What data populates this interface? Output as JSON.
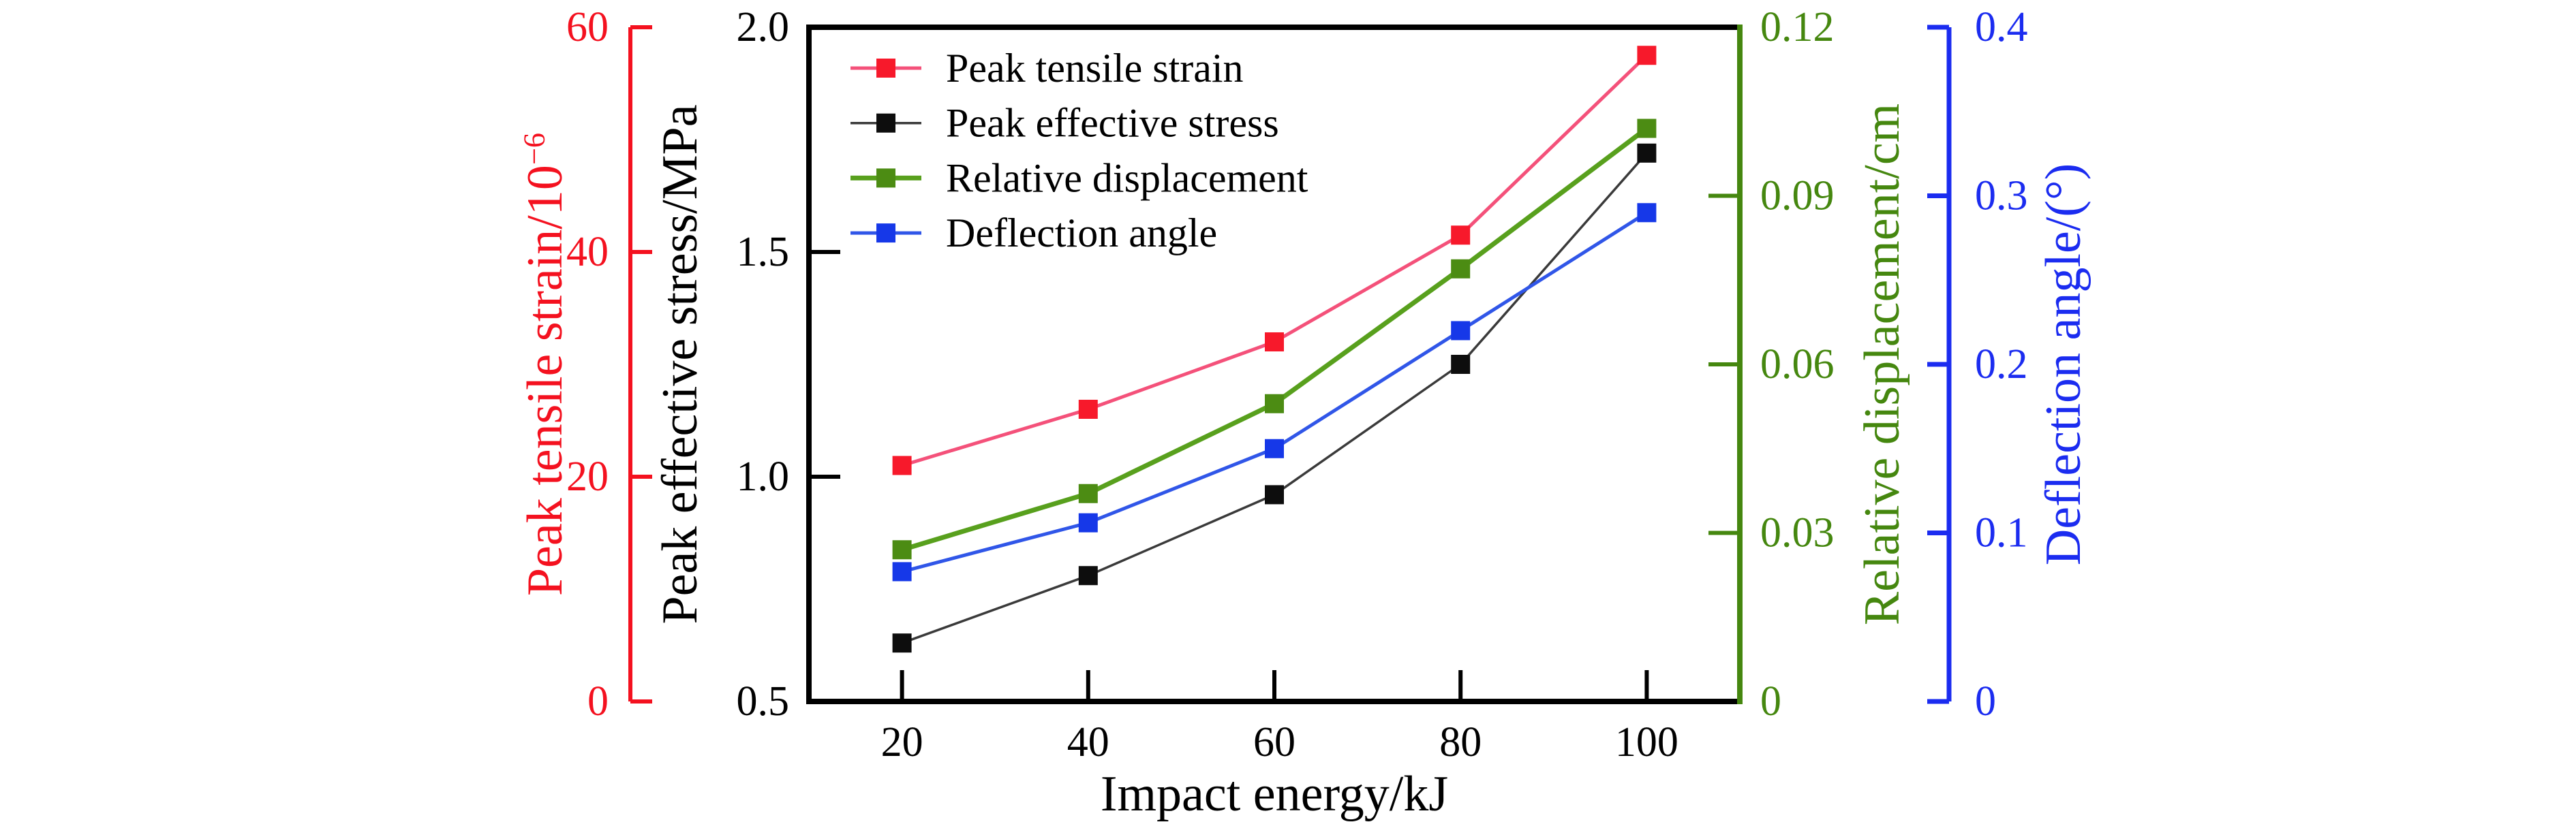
{
  "figure": {
    "background": "#ffffff"
  },
  "chart_data": {
    "type": "line",
    "title": "",
    "xlabel": "Impact energy/kJ",
    "xlim": [
      10,
      110
    ],
    "x": [
      20,
      40,
      60,
      80,
      100
    ],
    "x_tick_labels": [
      "20",
      "40",
      "60",
      "80",
      "100"
    ],
    "grid": false,
    "legend_position": "top-left-inside",
    "marker": "square",
    "axes": [
      {
        "id": "strain",
        "side": "left-outer",
        "title": "Peak tensile strain/10⁻⁶",
        "title_base": "Peak tensile strain/10",
        "title_exp": "−6",
        "color": "#f4111f",
        "lim": [
          0,
          60
        ],
        "tick_labels": [
          "0",
          "20",
          "40",
          "60"
        ]
      },
      {
        "id": "stress",
        "side": "left-inner",
        "title": "Peak effective stress/MPa",
        "color": "#000000",
        "lim": [
          0.5,
          2.0
        ],
        "tick_labels": [
          "0.5",
          "1.0",
          "1.5",
          "2.0"
        ]
      },
      {
        "id": "displacement",
        "side": "right-inner",
        "title": "Relative displacement/cm",
        "color": "#45870f",
        "lim": [
          0,
          0.12
        ],
        "tick_labels": [
          "0",
          "0.03",
          "0.06",
          "0.09",
          "0.12"
        ]
      },
      {
        "id": "angle",
        "side": "right-outer",
        "title": "Deflection angle/(°)",
        "color": "#1b2cf0",
        "lim": [
          0,
          0.4
        ],
        "tick_labels": [
          "0",
          "0.1",
          "0.2",
          "0.3",
          "0.4"
        ]
      }
    ],
    "series": [
      {
        "name": "Peak tensile strain",
        "axis": "strain",
        "values": [
          21,
          26,
          32,
          41.5,
          57.5
        ],
        "line_color": "#f4517a",
        "marker_color": "#f7192b",
        "line_width": 5
      },
      {
        "name": "Peak effective stress",
        "axis": "stress",
        "values": [
          0.63,
          0.78,
          0.96,
          1.25,
          1.72
        ],
        "line_color": "#3a3a3a",
        "marker_color": "#0d0d0d",
        "line_width": 3.5
      },
      {
        "name": "Relative displacement",
        "axis": "displacement",
        "values": [
          0.027,
          0.037,
          0.053,
          0.077,
          0.102
        ],
        "line_color": "#58a01d",
        "marker_color": "#4c8c13",
        "line_width": 7
      },
      {
        "name": "Deflection angle",
        "axis": "angle",
        "values": [
          0.077,
          0.106,
          0.15,
          0.22,
          0.29
        ],
        "line_color": "#3056e8",
        "marker_color": "#1638e8",
        "line_width": 5
      }
    ]
  }
}
